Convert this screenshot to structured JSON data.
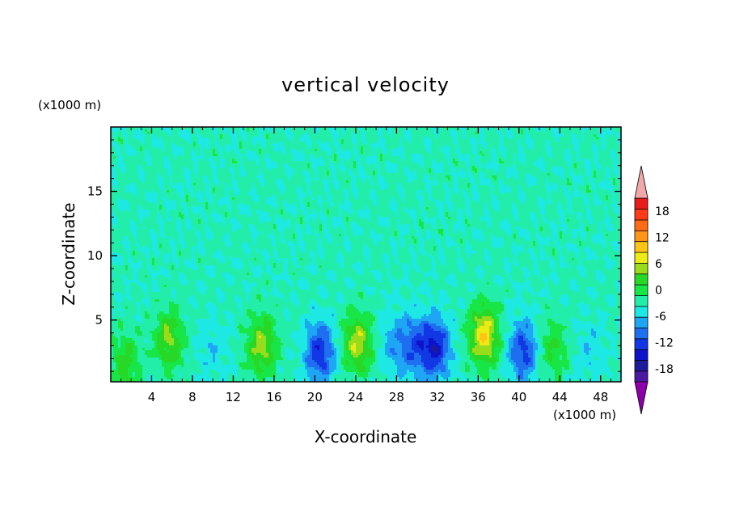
{
  "chart_data": {
    "type": "heatmap",
    "subtype": "filled contour",
    "title": "vertical velocity",
    "xlabel": "X-coordinate",
    "ylabel": "Z-coordinate",
    "x_unit_label": "(x1000 m)",
    "y_unit_label": "(x1000 m)",
    "xlim": [
      0,
      50
    ],
    "ylim": [
      0.2,
      20
    ],
    "x_ticks": [
      4,
      8,
      12,
      16,
      20,
      24,
      28,
      32,
      36,
      40,
      44,
      48
    ],
    "x_tick_labels": [
      "4",
      "8",
      "12",
      "16",
      "20",
      "24",
      "28",
      "32",
      "36",
      "40",
      "44",
      "48"
    ],
    "y_ticks": [
      5,
      10,
      15
    ],
    "y_tick_labels": [
      "5",
      "10",
      "15"
    ],
    "colorbar": {
      "levels": [
        -21,
        -18,
        -15,
        -12,
        -9,
        -6,
        -3,
        0,
        3,
        6,
        9,
        12,
        15,
        18,
        21
      ],
      "colors": [
        "#8b00a8",
        "#4b1aa0",
        "#1c1c9a",
        "#0e12c8",
        "#1238e6",
        "#1f6ef0",
        "#1ea6f5",
        "#1ee8e4",
        "#22eeaa",
        "#18e646",
        "#28d826",
        "#9adc1c",
        "#ecec14",
        "#ffc414",
        "#ff9616",
        "#ff6a16",
        "#ff3a18",
        "#e81c1c",
        "#f0a8a8"
      ],
      "tick_values": [
        -18,
        -12,
        -6,
        0,
        6,
        12,
        18
      ],
      "tick_labels": [
        "-18",
        "-12",
        "-6",
        "0",
        "6",
        "12",
        "18"
      ],
      "extend": "both"
    },
    "background_w": 0.5,
    "features": [
      {
        "x": 1.4,
        "z": 1.6,
        "peak_w": 7,
        "note": "small updraft"
      },
      {
        "x": 5.7,
        "z": 3.5,
        "peak_w": 9,
        "note": "updraft"
      },
      {
        "x": 10.0,
        "z": 2.8,
        "peak_w": -3,
        "note": "weak downdraft"
      },
      {
        "x": 14.8,
        "z": 3.0,
        "peak_w": 10,
        "note": "updraft"
      },
      {
        "x": 20.5,
        "z": 2.5,
        "peak_w": -12,
        "note": "downdraft"
      },
      {
        "x": 24.2,
        "z": 3.2,
        "peak_w": 11,
        "note": "updraft"
      },
      {
        "x": 27.8,
        "z": 3.2,
        "peak_w": -5,
        "note": "downdraft"
      },
      {
        "x": 29.8,
        "z": 3.0,
        "peak_w": -8,
        "note": "downdraft"
      },
      {
        "x": 31.8,
        "z": 2.8,
        "peak_w": -13,
        "note": "downdraft"
      },
      {
        "x": 36.6,
        "z": 3.8,
        "peak_w": 14,
        "note": "strongest updraft"
      },
      {
        "x": 40.4,
        "z": 2.6,
        "peak_w": -11,
        "note": "downdraft"
      },
      {
        "x": 43.3,
        "z": 2.8,
        "peak_w": 6,
        "note": "updraft"
      },
      {
        "x": 47.0,
        "z": 2.6,
        "peak_w": -3,
        "note": "weak downdraft"
      }
    ]
  }
}
